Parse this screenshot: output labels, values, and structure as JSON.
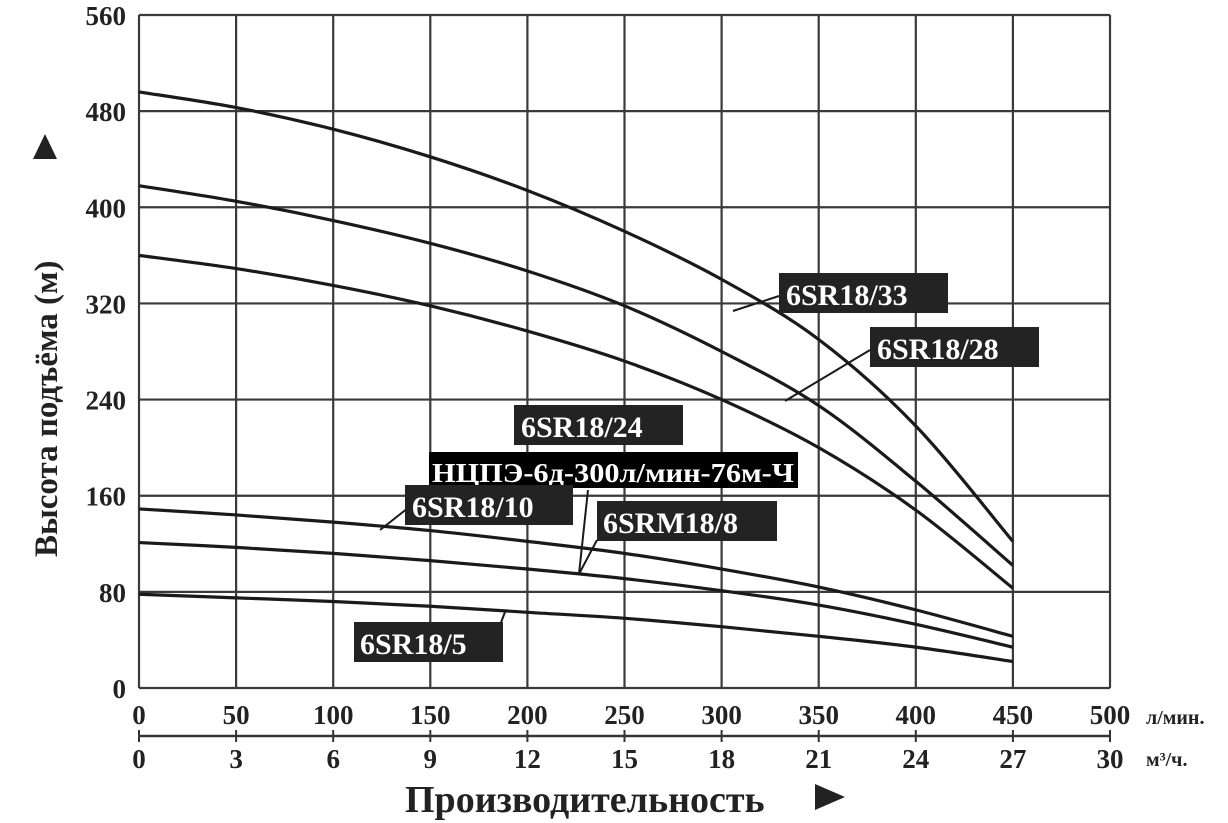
{
  "chart_data": {
    "type": "line",
    "title": "",
    "xlabel": "Производительность ►",
    "ylabel": "Высота подъёма (м) ►",
    "x_unit_primary": "л/мин.",
    "x_unit_secondary": "м³/ч.",
    "xlim": [
      0,
      500
    ],
    "ylim": [
      0,
      560
    ],
    "grid": true,
    "legend_position": "inline labels",
    "y_ticks": [
      "0",
      "80",
      "160",
      "240",
      "320",
      "400",
      "480",
      "560"
    ],
    "x_ticks_primary": [
      "0",
      "50",
      "100",
      "150",
      "200",
      "250",
      "300",
      "350",
      "400",
      "450",
      "500"
    ],
    "x_ticks_secondary": [
      "0",
      "3",
      "6",
      "9",
      "12",
      "15",
      "18",
      "21",
      "24",
      "27",
      "30"
    ],
    "x": [
      0,
      50,
      100,
      150,
      200,
      250,
      300,
      350,
      400,
      450
    ],
    "series": [
      {
        "name": "6SR18/33",
        "values": [
          496,
          483,
          465,
          442,
          414,
          380,
          340,
          290,
          218,
          122
        ]
      },
      {
        "name": "6SR18/28",
        "values": [
          418,
          405,
          389,
          370,
          347,
          318,
          280,
          235,
          172,
          102
        ]
      },
      {
        "name": "6SR18/24",
        "values": [
          360,
          349,
          335,
          318,
          297,
          272,
          240,
          200,
          148,
          83
        ]
      },
      {
        "name": "6SR18/10",
        "values": [
          149,
          144,
          138,
          131,
          122,
          112,
          99,
          84,
          65,
          43
        ]
      },
      {
        "name": "6SRM18/8",
        "values": [
          121,
          117,
          112,
          106,
          99,
          91,
          81,
          69,
          53,
          34
        ]
      },
      {
        "name": "6SR18/5",
        "values": [
          78,
          75,
          72,
          68,
          63,
          58,
          51,
          43,
          34,
          22
        ]
      }
    ],
    "annotations": [
      "6SR18/33",
      "6SR18/28",
      "6SR18/24",
      "НЦПЭ-6д-300л/мин-76м-Ч",
      "6SR18/10",
      "6SRM18/8",
      "6SR18/5"
    ]
  },
  "labels": {
    "s33": "6SR18/33",
    "s28": "6SR18/28",
    "s24": "6SR18/24",
    "ncpe": "НЦПЭ-6д-300л/мин-76м-Ч",
    "s10": "6SR18/10",
    "m8": "6SRM18/8",
    "s5": "6SR18/5"
  },
  "axis": {
    "ylabel": "Высота подъёма (м)",
    "xlabel": "Производительность",
    "unit_lmin": "л/мин.",
    "unit_m3h": "м³/ч."
  },
  "colors": {
    "line": "#1a1a1a",
    "grid": "#3a3a3a",
    "label_bg": "#232323",
    "label_text": "#ffffff"
  }
}
